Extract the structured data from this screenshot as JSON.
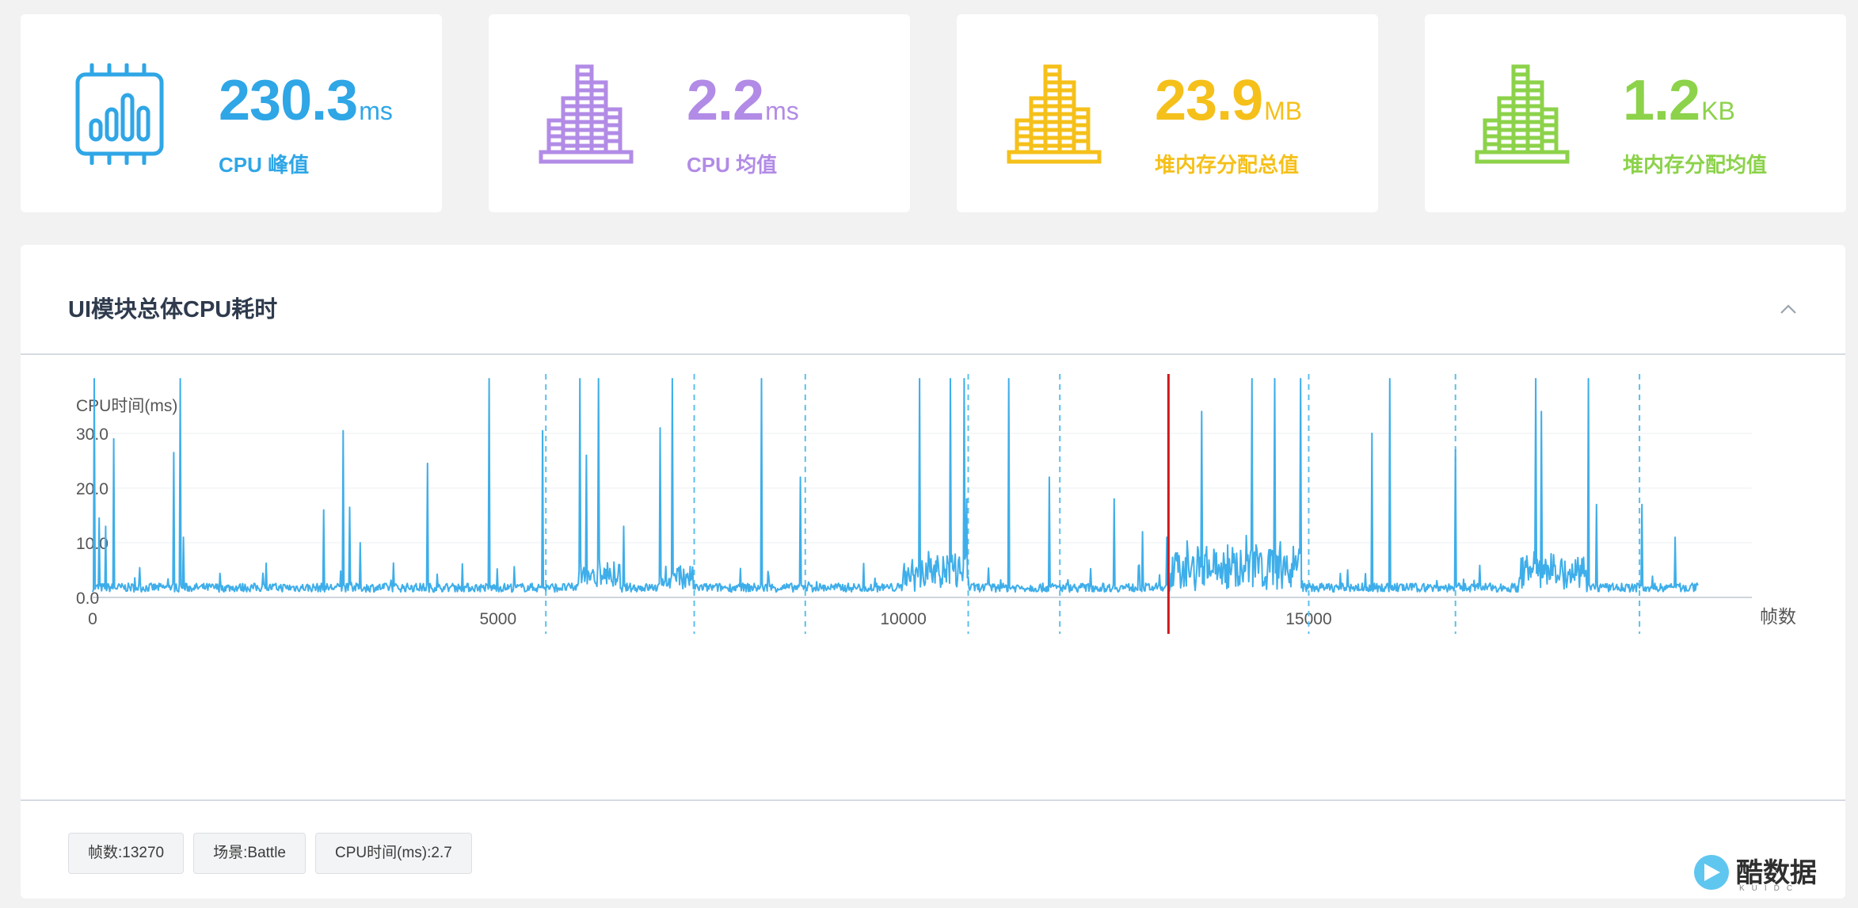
{
  "cards": [
    {
      "value": "230.3",
      "unit": "ms",
      "label": "CPU 峰值",
      "color": "#2fa6e6",
      "icon": "cpu-chip-icon"
    },
    {
      "value": "2.2",
      "unit": "ms",
      "label": "CPU 均值",
      "color": "#b28be6",
      "icon": "bar-chart-icon"
    },
    {
      "value": "23.9",
      "unit": "MB",
      "label": "堆内存分配总值",
      "color": "#f5c01a",
      "icon": "bar-chart-icon"
    },
    {
      "value": "1.2",
      "unit": "KB",
      "label": "堆内存分配均值",
      "color": "#8cd24a",
      "icon": "bar-chart-icon"
    }
  ],
  "panel": {
    "title": "UI模块总体CPU耗时",
    "collapse_icon": "chevron-up-icon"
  },
  "chart_data": {
    "type": "line",
    "ylabel": "CPU时间(ms)",
    "xlabel": "帧数",
    "y_ticks": [
      "0.0",
      "10.0",
      "20.0",
      "30.0"
    ],
    "x_ticks": [
      "0",
      "5000",
      "10000",
      "15000"
    ],
    "ylim": [
      0,
      40
    ],
    "xlim": [
      0,
      19800
    ],
    "line_color": "#3eaeea",
    "marker_color": "#d0181c",
    "grid": true,
    "selected_frame": 13270,
    "scene_boundaries": [
      5590,
      7420,
      8790,
      10800,
      11930,
      15000,
      16810,
      19080
    ],
    "baseline_ms": 1.8,
    "spikes": [
      {
        "frame": 20,
        "value": 40
      },
      {
        "frame": 80,
        "value": 14.5
      },
      {
        "frame": 160,
        "value": 13
      },
      {
        "frame": 260,
        "value": 29
      },
      {
        "frame": 1000,
        "value": 26.5
      },
      {
        "frame": 1080,
        "value": 40
      },
      {
        "frame": 1120,
        "value": 11
      },
      {
        "frame": 2850,
        "value": 16
      },
      {
        "frame": 3090,
        "value": 30.5
      },
      {
        "frame": 3170,
        "value": 16.5
      },
      {
        "frame": 3300,
        "value": 10
      },
      {
        "frame": 4130,
        "value": 24.5
      },
      {
        "frame": 4890,
        "value": 40
      },
      {
        "frame": 5550,
        "value": 30.5
      },
      {
        "frame": 6010,
        "value": 40
      },
      {
        "frame": 6090,
        "value": 26
      },
      {
        "frame": 6240,
        "value": 40
      },
      {
        "frame": 6550,
        "value": 13
      },
      {
        "frame": 7000,
        "value": 31
      },
      {
        "frame": 7150,
        "value": 40
      },
      {
        "frame": 8250,
        "value": 40
      },
      {
        "frame": 8730,
        "value": 22
      },
      {
        "frame": 10200,
        "value": 40
      },
      {
        "frame": 10580,
        "value": 40
      },
      {
        "frame": 10750,
        "value": 40
      },
      {
        "frame": 10780,
        "value": 18
      },
      {
        "frame": 11300,
        "value": 40
      },
      {
        "frame": 11800,
        "value": 22
      },
      {
        "frame": 12600,
        "value": 18
      },
      {
        "frame": 12950,
        "value": 12
      },
      {
        "frame": 13250,
        "value": 11
      },
      {
        "frame": 13680,
        "value": 34
      },
      {
        "frame": 14300,
        "value": 40
      },
      {
        "frame": 14580,
        "value": 40
      },
      {
        "frame": 14900,
        "value": 40
      },
      {
        "frame": 15780,
        "value": 30
      },
      {
        "frame": 16000,
        "value": 40
      },
      {
        "frame": 16810,
        "value": 27
      },
      {
        "frame": 17800,
        "value": 40
      },
      {
        "frame": 17870,
        "value": 34
      },
      {
        "frame": 18450,
        "value": 40
      },
      {
        "frame": 18550,
        "value": 17
      },
      {
        "frame": 19110,
        "value": 17
      },
      {
        "frame": 19520,
        "value": 11
      }
    ],
    "busy_ranges": [
      {
        "from": 6000,
        "to": 6500,
        "level": 4
      },
      {
        "from": 7000,
        "to": 7400,
        "level": 3.5
      },
      {
        "from": 10000,
        "to": 10800,
        "level": 6
      },
      {
        "from": 13300,
        "to": 14900,
        "level": 8
      },
      {
        "from": 17600,
        "to": 18400,
        "level": 6
      }
    ]
  },
  "status_tags": [
    {
      "text": "帧数:13270"
    },
    {
      "text": "场景:Battle"
    },
    {
      "text": "CPU时间(ms):2.7"
    }
  ],
  "watermark": {
    "text": "酷数据",
    "sub": "KUIDC"
  }
}
